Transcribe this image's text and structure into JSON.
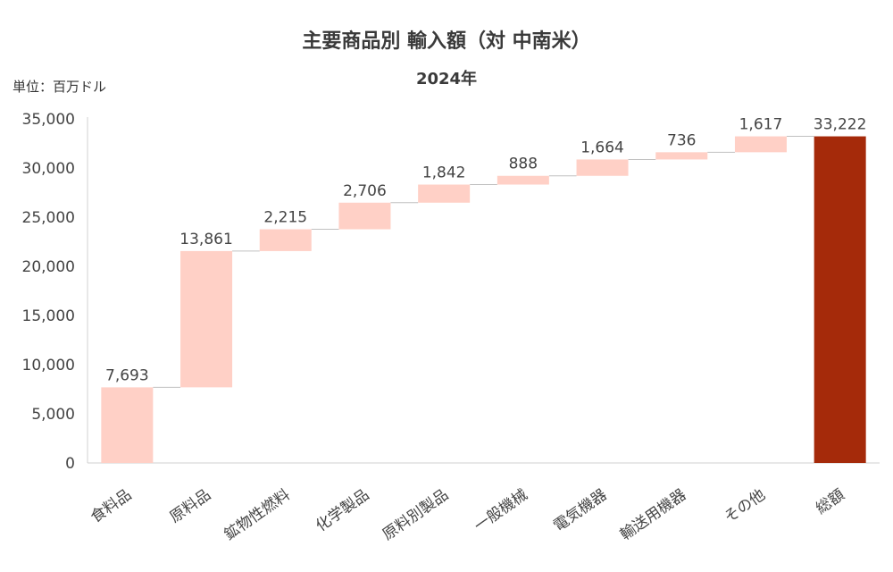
{
  "chart_data": {
    "type": "bar",
    "subtype": "waterfall",
    "title": "主要商品別 輸入額（対 中南米）",
    "subtitle": "2024年",
    "unit_label": "単位：百万ドル",
    "categories": [
      "食料品",
      "原料品",
      "鉱物性燃料",
      "化学製品",
      "原料別製品",
      "一般機械",
      "電気機器",
      "輸送用機器",
      "その他",
      "総額"
    ],
    "values": [
      7693,
      13861,
      2215,
      2706,
      1842,
      888,
      1664,
      736,
      1617,
      33222
    ],
    "value_labels": [
      "7,693",
      "13,861",
      "2,215",
      "2,706",
      "1,842",
      "888",
      "1,664",
      "736",
      "1,617",
      "33,222"
    ],
    "total_index": 9,
    "ylim": [
      0,
      35000
    ],
    "yticks": [
      0,
      5000,
      10000,
      15000,
      20000,
      25000,
      30000,
      35000
    ],
    "ytick_labels": [
      "0",
      "5,000",
      "10,000",
      "15,000",
      "20,000",
      "25,000",
      "30,000",
      "35,000"
    ],
    "colors": {
      "increment": "#ffd0c6",
      "total": "#a52a0a",
      "connector": "#c0c0c0",
      "axis": "#d0d0d0"
    },
    "legend": "none",
    "grid": false
  }
}
